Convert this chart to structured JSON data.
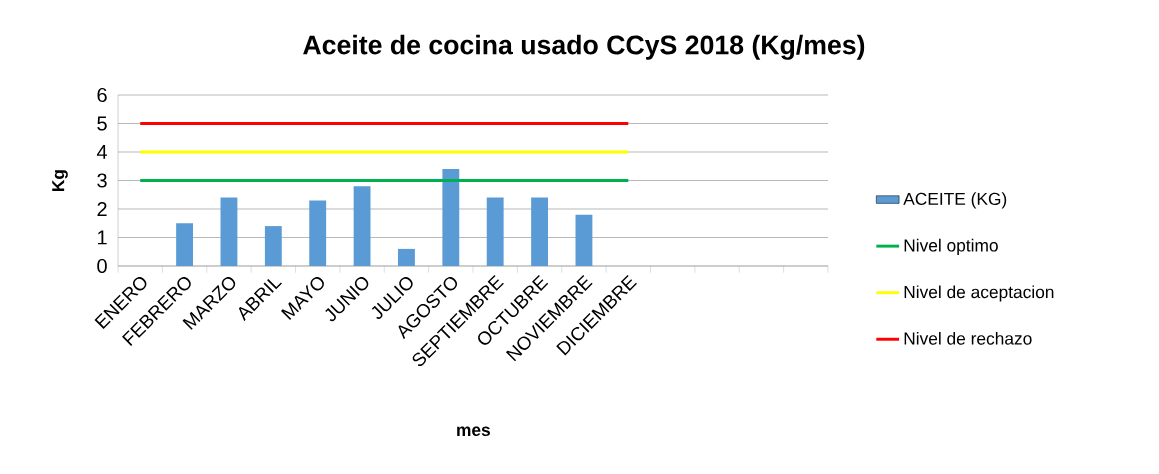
{
  "chart_data": {
    "type": "bar",
    "title": "Aceite de cocina usado CCyS 2018 (Kg/mes)",
    "xlabel": "mes",
    "ylabel": "Kg",
    "categories": [
      "ENERO",
      "FEBRERO",
      "MARZO",
      "ABRIL",
      "MAYO",
      "JUNIO",
      "JULIO",
      "AGOSTO",
      "SEPTIEMBRE",
      "OCTUBRE",
      "NOVIEMBRE",
      "DICIEMBRE",
      null,
      null,
      null,
      null
    ],
    "series": [
      {
        "name": "ACEITE (KG)",
        "color": "#5b9bd5",
        "values": [
          null,
          1.5,
          2.4,
          1.4,
          2.3,
          2.8,
          0.6,
          3.4,
          2.4,
          2.4,
          1.8,
          null,
          null,
          null,
          null,
          null
        ]
      },
      {
        "name": "Nivel optimo",
        "type": "line",
        "color": "#00b050",
        "values": [
          3,
          3,
          3,
          3,
          3,
          3,
          3,
          3,
          3,
          3,
          3,
          3,
          null,
          null,
          null,
          null
        ]
      },
      {
        "name": "Nivel de aceptacion",
        "type": "line",
        "color": "#ffff00",
        "values": [
          4,
          4,
          4,
          4,
          4,
          4,
          4,
          4,
          4,
          4,
          4,
          4,
          null,
          null,
          null,
          null
        ]
      },
      {
        "name": "Nivel de rechazo",
        "type": "line",
        "color": "#ff0000",
        "values": [
          5,
          5,
          5,
          5,
          5,
          5,
          5,
          5,
          5,
          5,
          5,
          5,
          null,
          null,
          null,
          null
        ]
      }
    ],
    "ylim": [
      0,
      6
    ],
    "yticks": [
      0,
      1,
      2,
      3,
      4,
      5,
      6
    ],
    "grid": "y",
    "legend": "right",
    "marker": "none"
  }
}
